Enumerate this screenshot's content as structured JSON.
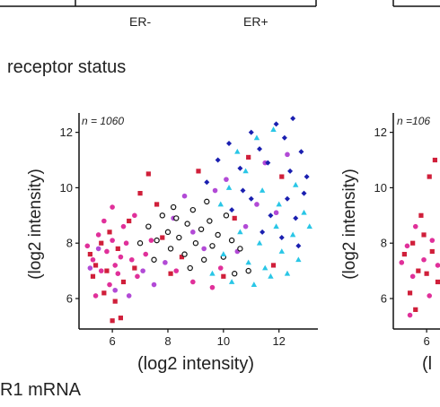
{
  "top_fragment": {
    "categories": [
      "ER-",
      "ER+"
    ]
  },
  "panel_labels": {
    "left_title": "receptor status",
    "bottom_title": "R1 mRNA"
  },
  "chart_data": [
    {
      "type": "scatter",
      "n_label": "n = 1060",
      "xlabel": "(log2 intensity)",
      "ylabel": "(log2 intensity)",
      "xlim": [
        4.8,
        13.4
      ],
      "ylim": [
        4.9,
        12.7
      ],
      "xticks": [
        6,
        8,
        10,
        12
      ],
      "yticks": [
        6,
        8,
        10,
        12
      ],
      "series": [
        {
          "color": "#d01f3a",
          "marker": "square",
          "points": [
            [
              5.2,
              7.6
            ],
            [
              5.4,
              7.2
            ],
            [
              5.6,
              8.0
            ],
            [
              5.3,
              6.8
            ],
            [
              5.8,
              7.0
            ],
            [
              5.9,
              8.4
            ],
            [
              6.2,
              7.8
            ],
            [
              6.4,
              6.6
            ],
            [
              6.1,
              5.9
            ],
            [
              5.7,
              6.2
            ],
            [
              6.6,
              8.8
            ],
            [
              6.8,
              7.1
            ],
            [
              7.0,
              9.8
            ],
            [
              7.3,
              10.5
            ],
            [
              7.6,
              9.4
            ],
            [
              7.8,
              8.2
            ],
            [
              8.1,
              6.9
            ],
            [
              8.5,
              7.5
            ],
            [
              6.0,
              5.2
            ],
            [
              6.3,
              5.3
            ],
            [
              9.1,
              10.6
            ],
            [
              10.0,
              6.8
            ],
            [
              10.4,
              8.9
            ],
            [
              10.9,
              11.1
            ],
            [
              11.8,
              7.2
            ],
            [
              12.1,
              10.4
            ]
          ]
        },
        {
          "color": "#e0309a",
          "marker": "circle",
          "points": [
            [
              5.1,
              7.9
            ],
            [
              5.3,
              7.4
            ],
            [
              5.5,
              8.3
            ],
            [
              5.6,
              7.0
            ],
            [
              5.8,
              7.7
            ],
            [
              6.0,
              8.1
            ],
            [
              6.2,
              6.9
            ],
            [
              6.3,
              7.5
            ],
            [
              6.5,
              8.0
            ],
            [
              5.9,
              6.5
            ],
            [
              6.1,
              7.2
            ],
            [
              5.4,
              6.1
            ],
            [
              6.7,
              7.4
            ],
            [
              6.9,
              6.8
            ],
            [
              7.2,
              7.6
            ],
            [
              6.4,
              8.6
            ],
            [
              5.7,
              8.8
            ],
            [
              6.0,
              9.3
            ],
            [
              6.8,
              9.0
            ],
            [
              7.4,
              8.1
            ],
            [
              8.3,
              7.0
            ],
            [
              8.9,
              6.6
            ],
            [
              9.6,
              6.4
            ],
            [
              9.9,
              7.1
            ]
          ]
        },
        {
          "color": "#b24ad6",
          "marker": "circle",
          "points": [
            [
              5.2,
              7.1
            ],
            [
              5.5,
              7.8
            ],
            [
              6.1,
              6.3
            ],
            [
              6.6,
              6.1
            ],
            [
              7.1,
              7.0
            ],
            [
              7.5,
              6.5
            ],
            [
              7.9,
              7.3
            ],
            [
              8.2,
              8.9
            ],
            [
              8.6,
              9.7
            ],
            [
              8.9,
              8.4
            ],
            [
              9.3,
              7.8
            ],
            [
              9.7,
              9.9
            ],
            [
              10.1,
              10.3
            ],
            [
              10.5,
              7.7
            ],
            [
              10.8,
              8.6
            ],
            [
              11.2,
              9.4
            ],
            [
              11.5,
              10.9
            ],
            [
              11.9,
              9.1
            ],
            [
              12.3,
              11.2
            ]
          ]
        },
        {
          "color": "#111111",
          "marker": "circle-open",
          "points": [
            [
              7.3,
              8.6
            ],
            [
              7.6,
              8.1
            ],
            [
              7.8,
              9.0
            ],
            [
              8.0,
              8.4
            ],
            [
              8.1,
              7.8
            ],
            [
              8.3,
              8.9
            ],
            [
              8.4,
              8.2
            ],
            [
              8.6,
              7.6
            ],
            [
              8.7,
              8.7
            ],
            [
              8.9,
              9.2
            ],
            [
              9.0,
              8.0
            ],
            [
              9.2,
              8.5
            ],
            [
              9.3,
              7.4
            ],
            [
              9.5,
              8.8
            ],
            [
              9.6,
              7.9
            ],
            [
              9.8,
              8.3
            ],
            [
              10.0,
              7.5
            ],
            [
              10.1,
              9.0
            ],
            [
              10.3,
              8.1
            ],
            [
              10.6,
              7.8
            ],
            [
              10.9,
              7.0
            ],
            [
              7.0,
              8.0
            ],
            [
              7.5,
              7.4
            ],
            [
              8.2,
              9.3
            ],
            [
              8.8,
              7.1
            ],
            [
              9.4,
              9.5
            ],
            [
              10.4,
              6.9
            ]
          ]
        },
        {
          "color": "#1a1fb0",
          "marker": "diamond",
          "points": [
            [
              9.4,
              10.2
            ],
            [
              9.8,
              11.0
            ],
            [
              10.2,
              11.6
            ],
            [
              10.6,
              10.7
            ],
            [
              11.0,
              12.0
            ],
            [
              11.3,
              11.4
            ],
            [
              11.6,
              10.9
            ],
            [
              11.9,
              12.3
            ],
            [
              12.2,
              11.8
            ],
            [
              12.5,
              12.5
            ],
            [
              12.4,
              10.6
            ],
            [
              12.8,
              11.3
            ],
            [
              12.9,
              9.8
            ],
            [
              12.6,
              8.9
            ],
            [
              12.3,
              9.6
            ],
            [
              12.1,
              8.2
            ],
            [
              11.7,
              9.0
            ],
            [
              11.4,
              8.4
            ],
            [
              11.0,
              9.6
            ],
            [
              10.7,
              9.9
            ],
            [
              10.3,
              9.2
            ],
            [
              13.0,
              10.4
            ],
            [
              12.7,
              7.9
            ]
          ]
        },
        {
          "color": "#29c6e6",
          "marker": "triangle",
          "points": [
            [
              9.6,
              6.9
            ],
            [
              10.0,
              7.6
            ],
            [
              10.3,
              6.6
            ],
            [
              10.6,
              8.4
            ],
            [
              10.9,
              7.3
            ],
            [
              11.1,
              6.5
            ],
            [
              11.3,
              8.0
            ],
            [
              11.5,
              7.1
            ],
            [
              11.7,
              6.8
            ],
            [
              11.9,
              8.6
            ],
            [
              12.1,
              7.7
            ],
            [
              12.3,
              6.9
            ],
            [
              12.5,
              8.3
            ],
            [
              12.7,
              7.4
            ],
            [
              12.9,
              9.1
            ],
            [
              13.1,
              8.6
            ],
            [
              12.0,
              9.4
            ],
            [
              11.4,
              9.9
            ],
            [
              10.8,
              10.6
            ],
            [
              11.2,
              11.8
            ],
            [
              11.8,
              12.1
            ],
            [
              10.5,
              11.3
            ],
            [
              9.9,
              9.4
            ],
            [
              10.2,
              10.0
            ],
            [
              12.6,
              10.1
            ]
          ]
        }
      ]
    },
    {
      "type": "scatter",
      "n_label": "n =106",
      "ylabel": "(log2 intensity)",
      "xlabel_visible": "(l",
      "xticks": [
        6
      ],
      "yticks": [
        6,
        8,
        10,
        12
      ],
      "ylim": [
        4.9,
        12.7
      ],
      "xlim": [
        4.8,
        13.4
      ],
      "series": [
        {
          "color": "#d01f3a",
          "marker": "square",
          "points": [
            [
              5.2,
              7.6
            ],
            [
              5.5,
              8.0
            ],
            [
              5.7,
              7.0
            ],
            [
              5.9,
              8.3
            ],
            [
              6.2,
              7.7
            ],
            [
              6.4,
              6.6
            ],
            [
              5.4,
              6.2
            ],
            [
              5.8,
              9.0
            ],
            [
              6.1,
              10.4
            ],
            [
              6.3,
              11.0
            ],
            [
              6.5,
              9.6
            ],
            [
              5.6,
              5.6
            ],
            [
              6.0,
              6.9
            ]
          ]
        },
        {
          "color": "#e0309a",
          "marker": "circle",
          "points": [
            [
              5.1,
              7.3
            ],
            [
              5.3,
              7.9
            ],
            [
              5.6,
              8.6
            ],
            [
              5.9,
              7.4
            ],
            [
              6.2,
              8.1
            ],
            [
              6.4,
              7.2
            ],
            [
              5.5,
              6.8
            ],
            [
              6.1,
              6.1
            ],
            [
              5.4,
              5.4
            ],
            [
              6.5,
              8.8
            ]
          ]
        }
      ]
    }
  ]
}
